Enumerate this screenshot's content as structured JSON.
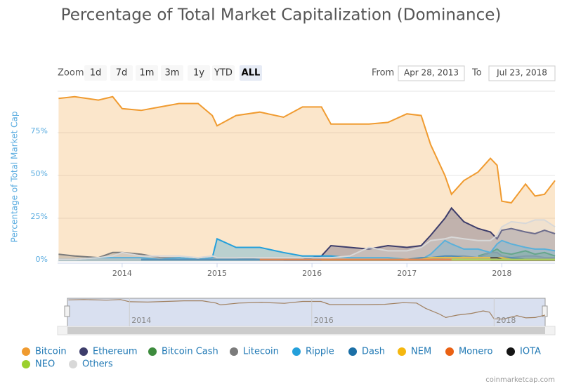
{
  "chart_data": {
    "type": "area",
    "title": "Percentage of Total Market Capitalization (Dominance)",
    "y_axis_title": "Percentage of Total Market Cap",
    "zoom_label": "Zoom",
    "zoom_buttons": [
      "1d",
      "7d",
      "1m",
      "3m",
      "1y",
      "YTD",
      "ALL"
    ],
    "selected_zoom_index": 6,
    "range": {
      "from_label": "From",
      "from": "Apr 28, 2013",
      "to_label": "To",
      "to": "Jul 23, 2018"
    },
    "credit": "coinmarketcap.com",
    "x": [
      2013.33,
      2013.5,
      2013.75,
      2013.9,
      2014.0,
      2014.2,
      2014.4,
      2014.6,
      2014.8,
      2014.95,
      2015.0,
      2015.2,
      2015.45,
      2015.7,
      2015.9,
      2016.1,
      2016.2,
      2016.4,
      2016.6,
      2016.8,
      2017.0,
      2017.15,
      2017.25,
      2017.4,
      2017.47,
      2017.6,
      2017.75,
      2017.88,
      2017.95,
      2018.0,
      2018.1,
      2018.25,
      2018.35,
      2018.45,
      2018.56
    ],
    "xlim": [
      2013.32,
      2018.56
    ],
    "xticks": [
      2014,
      2015,
      2016,
      2017,
      2018
    ],
    "navigator_xticks": [
      2014,
      2016,
      2018
    ],
    "ylim": [
      0,
      100
    ],
    "yticks": [
      {
        "value": 0,
        "label": "0%"
      },
      {
        "value": 25,
        "label": "25%"
      },
      {
        "value": 50,
        "label": "50%"
      },
      {
        "value": 75,
        "label": "75%"
      }
    ],
    "grid": true,
    "series": [
      {
        "name": "Bitcoin",
        "color": "#f09b30",
        "values": [
          95,
          96,
          94,
          96,
          89,
          88,
          90,
          92,
          92,
          85,
          79,
          85,
          87,
          84,
          90,
          90,
          80,
          80,
          80,
          81,
          86,
          85,
          68,
          50,
          39,
          47,
          52,
          60,
          56,
          35,
          34,
          45,
          38,
          39,
          47
        ]
      },
      {
        "name": "Ethereum",
        "color": "#3d3d6b",
        "values": [
          null,
          null,
          null,
          null,
          null,
          null,
          null,
          null,
          null,
          null,
          null,
          null,
          null,
          1,
          1,
          3,
          9,
          8,
          7,
          9,
          8,
          9,
          15,
          25,
          31,
          23,
          19,
          17,
          13,
          18,
          19,
          17,
          16,
          18,
          16
        ]
      },
      {
        "name": "Bitcoin Cash",
        "color": "#3d8b3d",
        "values": [
          null,
          null,
          null,
          null,
          null,
          null,
          null,
          null,
          null,
          null,
          null,
          null,
          null,
          null,
          null,
          null,
          null,
          null,
          null,
          null,
          null,
          null,
          null,
          null,
          null,
          null,
          3,
          5,
          7,
          5,
          4,
          6,
          4,
          5,
          3
        ]
      },
      {
        "name": "Litecoin",
        "color": "#7b7b7b",
        "values": [
          4,
          3,
          2,
          5,
          5,
          4,
          2,
          2,
          1,
          2,
          2,
          2,
          1,
          1,
          1,
          1,
          1,
          1,
          1,
          1,
          1,
          1,
          1,
          2,
          3,
          3,
          2,
          5,
          5,
          3,
          2,
          3,
          3,
          2,
          2
        ]
      },
      {
        "name": "Ripple",
        "color": "#24a0db",
        "values": [
          1,
          1,
          2,
          2,
          2,
          2,
          1,
          2,
          1,
          2,
          13,
          8,
          8,
          5,
          3,
          3,
          3,
          2,
          2,
          2,
          1,
          1,
          4,
          12,
          10,
          7,
          7,
          5,
          10,
          12,
          10,
          8,
          7,
          7,
          6
        ]
      },
      {
        "name": "Dash",
        "color": "#1b6fa6",
        "values": [
          null,
          null,
          null,
          null,
          null,
          1,
          1,
          1,
          1,
          1,
          1,
          1,
          1,
          1,
          1,
          1,
          1,
          1,
          1,
          1,
          1,
          2,
          2,
          3,
          3,
          2,
          2,
          2,
          2,
          2,
          2,
          1,
          1,
          1,
          1
        ]
      },
      {
        "name": "NEM",
        "color": "#f5b70f",
        "values": [
          null,
          null,
          null,
          null,
          null,
          null,
          null,
          null,
          null,
          null,
          null,
          null,
          null,
          null,
          null,
          1,
          1,
          1,
          1,
          1,
          1,
          1,
          2,
          2,
          2,
          2,
          2,
          2,
          2,
          2,
          1,
          1,
          1,
          1,
          1
        ]
      },
      {
        "name": "Monero",
        "color": "#ea6113",
        "values": [
          null,
          null,
          null,
          null,
          null,
          null,
          null,
          null,
          null,
          null,
          null,
          null,
          1,
          1,
          1,
          1,
          1,
          1,
          1,
          1,
          1,
          1,
          1,
          1,
          1,
          1,
          1,
          1,
          1,
          1,
          1,
          1,
          1,
          1,
          1
        ]
      },
      {
        "name": "IOTA",
        "color": "#151515",
        "values": [
          null,
          null,
          null,
          null,
          null,
          null,
          null,
          null,
          null,
          null,
          null,
          null,
          null,
          null,
          null,
          null,
          null,
          null,
          null,
          null,
          null,
          null,
          null,
          null,
          null,
          null,
          null,
          2,
          2,
          1,
          1,
          1,
          1,
          1,
          1
        ]
      },
      {
        "name": "NEO",
        "color": "#9bd02e",
        "values": [
          null,
          null,
          null,
          null,
          null,
          null,
          null,
          null,
          null,
          null,
          null,
          null,
          null,
          null,
          null,
          null,
          null,
          null,
          null,
          null,
          null,
          null,
          null,
          null,
          1,
          1,
          1,
          1,
          1,
          1,
          1,
          1,
          1,
          1,
          1
        ]
      },
      {
        "name": "Others",
        "color": "#d8d8d8",
        "values": [
          1,
          1,
          2,
          3,
          5,
          3,
          3,
          3,
          2,
          3,
          2,
          2,
          2,
          2,
          2,
          2,
          2,
          3,
          8,
          6,
          6,
          8,
          12,
          13,
          14,
          13,
          12,
          12,
          15,
          20,
          23,
          22,
          24,
          24,
          20
        ]
      }
    ]
  }
}
